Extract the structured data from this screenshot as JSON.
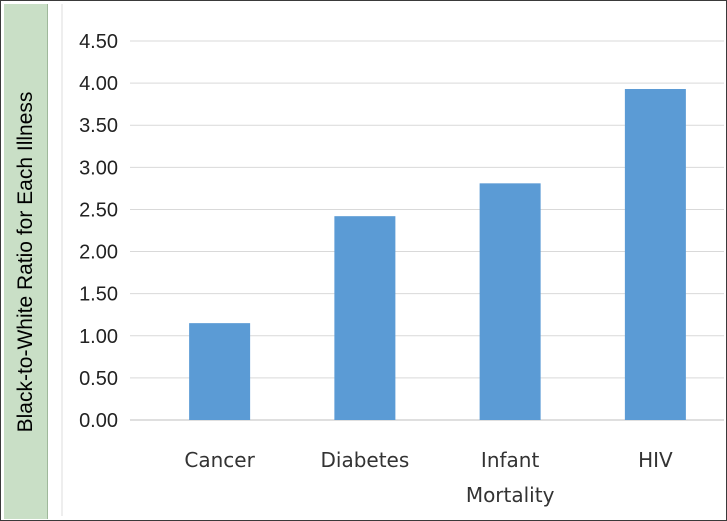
{
  "chart_data": {
    "type": "bar",
    "categories": [
      "Cancer",
      "Diabetes",
      "Infant Mortality",
      "HIV"
    ],
    "category_lines": [
      [
        "Cancer"
      ],
      [
        "Diabetes"
      ],
      [
        "Infant",
        "Mortality"
      ],
      [
        "HIV"
      ]
    ],
    "values": [
      1.15,
      2.42,
      2.81,
      3.93
    ],
    "ylabel": "Black-to-White Ratio for Each Illness",
    "xlabel": "",
    "ylim": [
      0,
      4.5
    ],
    "yticks": [
      "0.00",
      "0.50",
      "1.00",
      "1.50",
      "2.00",
      "2.50",
      "3.00",
      "3.50",
      "4.00",
      "4.50"
    ],
    "grid": true,
    "legend": "none",
    "colors": {
      "bar": "#5b9bd5",
      "grid": "#d9d9d9",
      "label_bg": "#c9dfc6"
    }
  }
}
